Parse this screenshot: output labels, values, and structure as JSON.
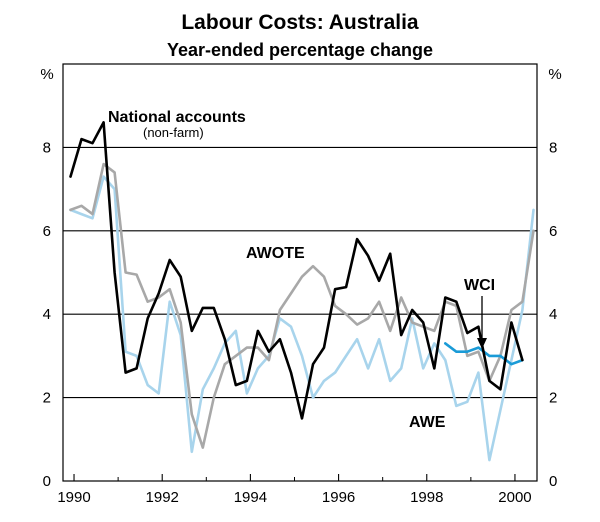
{
  "chart_data": {
    "type": "line",
    "title": "Labour Costs: Australia",
    "subtitle": "Year-ended percentage change",
    "y_unit_left": "%",
    "y_unit_right": "%",
    "ylim": [
      0,
      10
    ],
    "xlim": [
      1989.75,
      2000.5
    ],
    "y_ticks": [
      "0",
      "2",
      "4",
      "6",
      "8"
    ],
    "x_ticks": [
      "1990",
      "1992",
      "1994",
      "1996",
      "1998",
      "2000"
    ],
    "grid": "horizontal",
    "annotations": {
      "national_accounts": "National accounts",
      "national_accounts_sub": "(non-farm)",
      "awote": "AWOTE",
      "wci": "WCI",
      "awe": "AWE"
    },
    "series": [
      {
        "name": "National accounts",
        "color": "#000000",
        "points": [
          [
            1989.92,
            7.3
          ],
          [
            1990.17,
            8.2
          ],
          [
            1990.42,
            8.1
          ],
          [
            1990.67,
            8.6
          ],
          [
            1990.92,
            5.0
          ],
          [
            1991.17,
            2.6
          ],
          [
            1991.42,
            2.7
          ],
          [
            1991.67,
            3.9
          ],
          [
            1991.92,
            4.5
          ],
          [
            1992.17,
            5.3
          ],
          [
            1992.42,
            4.9
          ],
          [
            1992.67,
            3.6
          ],
          [
            1992.92,
            4.15
          ],
          [
            1993.17,
            4.15
          ],
          [
            1993.42,
            3.4
          ],
          [
            1993.67,
            2.3
          ],
          [
            1993.92,
            2.4
          ],
          [
            1994.17,
            3.6
          ],
          [
            1994.42,
            3.1
          ],
          [
            1994.67,
            3.4
          ],
          [
            1994.92,
            2.6
          ],
          [
            1995.17,
            1.5
          ],
          [
            1995.42,
            2.8
          ],
          [
            1995.67,
            3.2
          ],
          [
            1995.92,
            4.6
          ],
          [
            1996.17,
            4.65
          ],
          [
            1996.42,
            5.8
          ],
          [
            1996.67,
            5.4
          ],
          [
            1996.92,
            4.8
          ],
          [
            1997.17,
            5.45
          ],
          [
            1997.42,
            3.5
          ],
          [
            1997.67,
            4.1
          ],
          [
            1997.92,
            3.8
          ],
          [
            1998.17,
            2.7
          ],
          [
            1998.42,
            4.4
          ],
          [
            1998.67,
            4.3
          ],
          [
            1998.92,
            3.55
          ],
          [
            1999.17,
            3.7
          ],
          [
            1999.42,
            2.4
          ],
          [
            1999.67,
            2.2
          ],
          [
            1999.92,
            3.8
          ],
          [
            2000.17,
            2.9
          ]
        ]
      },
      {
        "name": "AWOTE",
        "color": "#a8a8a8",
        "points": [
          [
            1989.92,
            6.5
          ],
          [
            1990.17,
            6.6
          ],
          [
            1990.42,
            6.4
          ],
          [
            1990.67,
            7.6
          ],
          [
            1990.92,
            7.4
          ],
          [
            1991.17,
            5.0
          ],
          [
            1991.42,
            4.95
          ],
          [
            1991.67,
            4.3
          ],
          [
            1991.92,
            4.4
          ],
          [
            1992.17,
            4.6
          ],
          [
            1992.42,
            3.8
          ],
          [
            1992.67,
            1.6
          ],
          [
            1992.92,
            0.8
          ],
          [
            1993.17,
            2.0
          ],
          [
            1993.42,
            2.8
          ],
          [
            1993.67,
            3.0
          ],
          [
            1993.92,
            3.2
          ],
          [
            1994.17,
            3.2
          ],
          [
            1994.42,
            2.9
          ],
          [
            1994.67,
            4.1
          ],
          [
            1994.92,
            4.5
          ],
          [
            1995.17,
            4.9
          ],
          [
            1995.42,
            5.15
          ],
          [
            1995.67,
            4.9
          ],
          [
            1995.92,
            4.2
          ],
          [
            1996.17,
            4.0
          ],
          [
            1996.42,
            3.75
          ],
          [
            1996.67,
            3.9
          ],
          [
            1996.92,
            4.3
          ],
          [
            1997.17,
            3.6
          ],
          [
            1997.42,
            4.4
          ],
          [
            1997.67,
            3.8
          ],
          [
            1997.92,
            3.7
          ],
          [
            1998.17,
            3.6
          ],
          [
            1998.42,
            4.3
          ],
          [
            1998.67,
            4.2
          ],
          [
            1998.92,
            3.0
          ],
          [
            1999.17,
            3.1
          ],
          [
            1999.42,
            2.4
          ],
          [
            1999.67,
            3.0
          ],
          [
            1999.92,
            4.1
          ],
          [
            2000.17,
            4.3
          ],
          [
            2000.42,
            6.0
          ]
        ]
      },
      {
        "name": "AWE",
        "color": "#a8d4ec",
        "points": [
          [
            1989.92,
            6.5
          ],
          [
            1990.17,
            6.4
          ],
          [
            1990.42,
            6.3
          ],
          [
            1990.67,
            7.3
          ],
          [
            1990.92,
            7.0
          ],
          [
            1991.17,
            3.1
          ],
          [
            1991.42,
            3.0
          ],
          [
            1991.67,
            2.3
          ],
          [
            1991.92,
            2.1
          ],
          [
            1992.17,
            4.3
          ],
          [
            1992.42,
            3.5
          ],
          [
            1992.67,
            0.7
          ],
          [
            1992.92,
            2.2
          ],
          [
            1993.17,
            2.7
          ],
          [
            1993.42,
            3.3
          ],
          [
            1993.67,
            3.6
          ],
          [
            1993.92,
            2.1
          ],
          [
            1994.17,
            2.7
          ],
          [
            1994.42,
            3.0
          ],
          [
            1994.67,
            3.9
          ],
          [
            1994.92,
            3.7
          ],
          [
            1995.17,
            3.0
          ],
          [
            1995.42,
            2.0
          ],
          [
            1995.67,
            2.4
          ],
          [
            1995.92,
            2.6
          ],
          [
            1996.17,
            3.0
          ],
          [
            1996.42,
            3.4
          ],
          [
            1996.67,
            2.7
          ],
          [
            1996.92,
            3.4
          ],
          [
            1997.17,
            2.4
          ],
          [
            1997.42,
            2.7
          ],
          [
            1997.67,
            3.9
          ],
          [
            1997.92,
            2.7
          ],
          [
            1998.17,
            3.3
          ],
          [
            1998.42,
            2.9
          ],
          [
            1998.67,
            1.8
          ],
          [
            1998.92,
            1.9
          ],
          [
            1999.17,
            2.6
          ],
          [
            1999.42,
            0.5
          ],
          [
            1999.67,
            1.7
          ],
          [
            1999.92,
            2.9
          ],
          [
            2000.17,
            4.1
          ],
          [
            2000.42,
            6.5
          ]
        ]
      },
      {
        "name": "WCI",
        "color": "#1a9bd7",
        "points": [
          [
            1998.42,
            3.3
          ],
          [
            1998.67,
            3.1
          ],
          [
            1998.92,
            3.1
          ],
          [
            1999.17,
            3.2
          ],
          [
            1999.42,
            3.0
          ],
          [
            1999.67,
            3.0
          ],
          [
            1999.92,
            2.8
          ],
          [
            2000.17,
            2.9
          ]
        ]
      }
    ]
  }
}
